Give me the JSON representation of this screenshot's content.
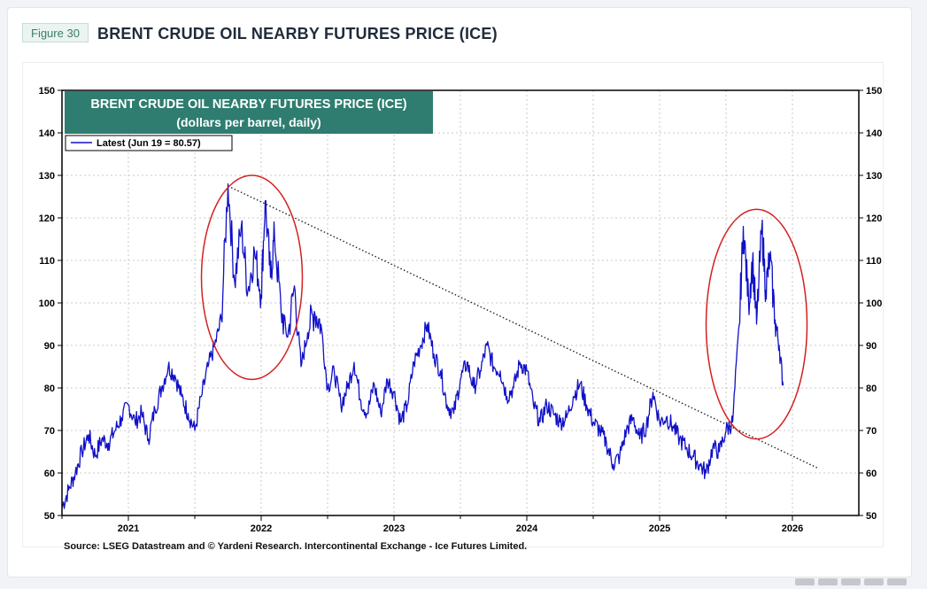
{
  "header": {
    "figure_label": "Figure 30",
    "title": "BRENT CRUDE OIL NEARBY FUTURES PRICE (ICE)"
  },
  "chart_data": {
    "type": "line",
    "title": "BRENT CRUDE OIL NEARBY FUTURES PRICE (ICE)",
    "subtitle": "(dollars per barrel, daily)",
    "legend": [
      "Latest (Jun 19 = 80.57)"
    ],
    "legend_position": "top-left",
    "source": "Source: LSEG Datastream and © Yardeni Research. Intercontinental Exchange - Ice Futures Limited.",
    "ylim": [
      50,
      150
    ],
    "yticks": [
      50,
      60,
      70,
      80,
      90,
      100,
      110,
      120,
      130,
      140,
      150
    ],
    "xlim": [
      2020.5,
      2026.5
    ],
    "xticks": [
      "2021",
      "2022",
      "2023",
      "2024",
      "2025",
      "2026"
    ],
    "grid": true,
    "colors": {
      "series": "#1010c8",
      "panel": "#2e7d70",
      "circle": "#d42020",
      "trend": "#222222"
    },
    "series": [
      {
        "values": [
          [
            2020.5,
            52
          ],
          [
            2020.55,
            56
          ],
          [
            2020.6,
            60
          ],
          [
            2020.65,
            65
          ],
          [
            2020.7,
            69
          ],
          [
            2020.75,
            64
          ],
          [
            2020.8,
            68
          ],
          [
            2020.85,
            67
          ],
          [
            2020.9,
            70
          ],
          [
            2020.95,
            73
          ],
          [
            2021.0,
            76
          ],
          [
            2021.05,
            72
          ],
          [
            2021.1,
            74
          ],
          [
            2021.15,
            68
          ],
          [
            2021.2,
            75
          ],
          [
            2021.25,
            80
          ],
          [
            2021.3,
            85
          ],
          [
            2021.35,
            83
          ],
          [
            2021.4,
            78
          ],
          [
            2021.45,
            74
          ],
          [
            2021.5,
            70
          ],
          [
            2021.55,
            78
          ],
          [
            2021.6,
            85
          ],
          [
            2021.65,
            90
          ],
          [
            2021.7,
            96
          ],
          [
            2021.75,
            128
          ],
          [
            2021.8,
            105
          ],
          [
            2021.85,
            118
          ],
          [
            2021.9,
            103
          ],
          [
            2021.95,
            112
          ],
          [
            2022.0,
            102
          ],
          [
            2022.03,
            124
          ],
          [
            2022.07,
            106
          ],
          [
            2022.1,
            116
          ],
          [
            2022.15,
            98
          ],
          [
            2022.2,
            92
          ],
          [
            2022.25,
            104
          ],
          [
            2022.3,
            85
          ],
          [
            2022.35,
            93
          ],
          [
            2022.4,
            98
          ],
          [
            2022.45,
            95
          ],
          [
            2022.5,
            80
          ],
          [
            2022.55,
            84
          ],
          [
            2022.6,
            76
          ],
          [
            2022.65,
            80
          ],
          [
            2022.7,
            86
          ],
          [
            2022.75,
            77
          ],
          [
            2022.8,
            74
          ],
          [
            2022.85,
            81
          ],
          [
            2022.9,
            74
          ],
          [
            2022.95,
            82
          ],
          [
            2023.0,
            79
          ],
          [
            2023.05,
            72
          ],
          [
            2023.1,
            76
          ],
          [
            2023.15,
            86
          ],
          [
            2023.2,
            90
          ],
          [
            2023.25,
            95
          ],
          [
            2023.3,
            88
          ],
          [
            2023.35,
            84
          ],
          [
            2023.4,
            76
          ],
          [
            2023.45,
            74
          ],
          [
            2023.5,
            82
          ],
          [
            2023.55,
            86
          ],
          [
            2023.6,
            80
          ],
          [
            2023.65,
            84
          ],
          [
            2023.7,
            90
          ],
          [
            2023.75,
            85
          ],
          [
            2023.8,
            84
          ],
          [
            2023.85,
            78
          ],
          [
            2023.9,
            80
          ],
          [
            2023.95,
            86
          ],
          [
            2024.0,
            84
          ],
          [
            2024.05,
            76
          ],
          [
            2024.1,
            72
          ],
          [
            2024.15,
            76
          ],
          [
            2024.2,
            74
          ],
          [
            2024.25,
            72
          ],
          [
            2024.3,
            73
          ],
          [
            2024.35,
            78
          ],
          [
            2024.4,
            81
          ],
          [
            2024.45,
            76
          ],
          [
            2024.5,
            72
          ],
          [
            2024.55,
            70
          ],
          [
            2024.6,
            67
          ],
          [
            2024.65,
            62
          ],
          [
            2024.7,
            64
          ],
          [
            2024.75,
            70
          ],
          [
            2024.8,
            73
          ],
          [
            2024.85,
            68
          ],
          [
            2024.9,
            71
          ],
          [
            2024.95,
            79
          ],
          [
            2025.0,
            72
          ],
          [
            2025.05,
            73
          ],
          [
            2025.1,
            71
          ],
          [
            2025.15,
            68
          ],
          [
            2025.2,
            66
          ],
          [
            2025.25,
            64
          ],
          [
            2025.3,
            62
          ],
          [
            2025.35,
            60
          ],
          [
            2025.4,
            66
          ],
          [
            2025.45,
            65
          ],
          [
            2025.5,
            70
          ],
          [
            2025.55,
            72
          ],
          [
            2025.6,
            95
          ],
          [
            2025.63,
            118
          ],
          [
            2025.67,
            100
          ],
          [
            2025.7,
            110
          ],
          [
            2025.73,
            95
          ],
          [
            2025.77,
            118
          ],
          [
            2025.8,
            103
          ],
          [
            2025.83,
            111
          ],
          [
            2025.87,
            96
          ],
          [
            2025.9,
            90
          ],
          [
            2025.93,
            80.57
          ]
        ]
      }
    ],
    "trendline": [
      [
        2021.75,
        127.5
      ],
      [
        2026.2,
        61
      ]
    ],
    "annotations": [
      {
        "type": "ellipse",
        "center": [
          2021.93,
          106
        ],
        "radius": [
          0.38,
          24
        ]
      },
      {
        "type": "ellipse",
        "center": [
          2025.73,
          95
        ],
        "radius": [
          0.38,
          27
        ]
      }
    ]
  }
}
